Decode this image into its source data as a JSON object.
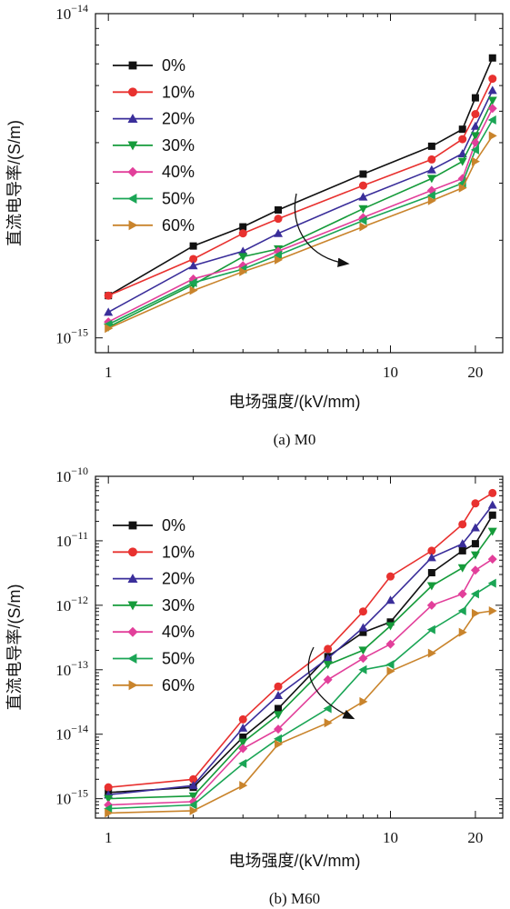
{
  "chart_data": [
    {
      "type": "line",
      "caption": "(a) M0",
      "xlabel": "电场强度/(kV/mm)",
      "ylabel": "直流电导率/(S/m)",
      "xscale": "log",
      "yscale": "log",
      "xlim": [
        0.9,
        25
      ],
      "ylim": [
        9e-16,
        1e-14
      ],
      "xticks": [
        {
          "value": 1,
          "label": "1"
        },
        {
          "value": 10,
          "label": "10"
        },
        {
          "value": 20,
          "label": "20"
        }
      ],
      "yticks": [
        {
          "value": 1e-15,
          "base": "10",
          "exp": "−15"
        },
        {
          "value": 1e-14,
          "base": "10",
          "exp": "−14"
        }
      ],
      "legend_position": "top-left",
      "x": [
        1,
        2,
        3,
        4,
        8,
        14,
        18,
        20,
        23
      ],
      "series": [
        {
          "name": "0%",
          "color": "#111111",
          "marker": "square",
          "values": [
            1.35e-15,
            1.92e-15,
            2.2e-15,
            2.48e-15,
            3.2e-15,
            3.9e-15,
            4.4e-15,
            5.5e-15,
            7.3e-15
          ]
        },
        {
          "name": "10%",
          "color": "#e8312f",
          "marker": "circle",
          "values": [
            1.35e-15,
            1.75e-15,
            2.1e-15,
            2.33e-15,
            2.95e-15,
            3.55e-15,
            4.1e-15,
            4.9e-15,
            6.3e-15
          ]
        },
        {
          "name": "20%",
          "color": "#3a2e9a",
          "marker": "triangle-up",
          "values": [
            1.2e-15,
            1.67e-15,
            1.85e-15,
            2.1e-15,
            2.72e-15,
            3.3e-15,
            3.7e-15,
            4.5e-15,
            5.8e-15
          ]
        },
        {
          "name": "30%",
          "color": "#159b3a",
          "marker": "triangle-down",
          "values": [
            1.08e-15,
            1.46e-15,
            1.78e-15,
            1.88e-15,
            2.5e-15,
            3.1e-15,
            3.5e-15,
            4.2e-15,
            5.4e-15
          ]
        },
        {
          "name": "40%",
          "color": "#e23f9a",
          "marker": "diamond",
          "values": [
            1.12e-15,
            1.52e-15,
            1.67e-15,
            1.85e-15,
            2.35e-15,
            2.85e-15,
            3.1e-15,
            4e-15,
            5.1e-15
          ]
        },
        {
          "name": "50%",
          "color": "#1aa555",
          "marker": "triangle-left",
          "values": [
            1.1e-15,
            1.48e-15,
            1.63e-15,
            1.8e-15,
            2.3e-15,
            2.75e-15,
            3e-15,
            3.8e-15,
            4.7e-15
          ]
        },
        {
          "name": "60%",
          "color": "#c9842c",
          "marker": "triangle-right",
          "values": [
            1.07e-15,
            1.4e-15,
            1.6e-15,
            1.74e-15,
            2.2e-15,
            2.65e-15,
            2.9e-15,
            3.5e-15,
            4.2e-15
          ]
        }
      ]
    },
    {
      "type": "line",
      "caption": "(b) M60",
      "xlabel": "电场强度/(kV/mm)",
      "ylabel": "直流电导率/(S/m)",
      "xscale": "log",
      "yscale": "log",
      "xlim": [
        0.9,
        25
      ],
      "ylim": [
        5e-16,
        1e-10
      ],
      "xticks": [
        {
          "value": 1,
          "label": "1"
        },
        {
          "value": 10,
          "label": "10"
        },
        {
          "value": 20,
          "label": "20"
        }
      ],
      "yticks": [
        {
          "value": 1e-15,
          "base": "10",
          "exp": "−15"
        },
        {
          "value": 1e-14,
          "base": "10",
          "exp": "−14"
        },
        {
          "value": 1e-13,
          "base": "10",
          "exp": "−13"
        },
        {
          "value": 1e-12,
          "base": "10",
          "exp": "−12"
        },
        {
          "value": 1e-11,
          "base": "10",
          "exp": "−11"
        },
        {
          "value": 1e-10,
          "base": "10",
          "exp": "−10"
        }
      ],
      "legend_position": "top-left",
      "x": [
        1,
        2,
        3,
        4,
        6,
        8,
        10,
        14,
        18,
        20,
        23
      ],
      "series": [
        {
          "name": "0%",
          "color": "#111111",
          "marker": "square",
          "values": [
            1.25e-15,
            1.5e-15,
            9e-15,
            2.5e-14,
            1.6e-13,
            3.8e-13,
            5.5e-13,
            3.2e-12,
            7e-12,
            9e-12,
            2.5e-11
          ]
        },
        {
          "name": "10%",
          "color": "#e8312f",
          "marker": "circle",
          "values": [
            1.5e-15,
            2e-15,
            1.7e-14,
            5.5e-14,
            2.1e-13,
            8e-13,
            2.8e-12,
            7e-12,
            1.8e-11,
            3.8e-11,
            5.5e-11
          ]
        },
        {
          "name": "20%",
          "color": "#3a2e9a",
          "marker": "triangle-up",
          "values": [
            1.15e-15,
            1.6e-15,
            1.25e-14,
            4e-14,
            1.5e-13,
            4.5e-13,
            1.2e-12,
            5.5e-12,
            9e-12,
            1.6e-11,
            3.6e-11
          ]
        },
        {
          "name": "30%",
          "color": "#159b3a",
          "marker": "triangle-down",
          "values": [
            1e-15,
            1.1e-15,
            7.5e-15,
            2e-14,
            1.2e-13,
            2e-13,
            4.8e-13,
            2e-12,
            3.8e-12,
            6e-12,
            1.4e-11
          ]
        },
        {
          "name": "40%",
          "color": "#e23f9a",
          "marker": "diamond",
          "values": [
            8e-16,
            9e-16,
            6e-15,
            1.2e-14,
            7e-14,
            1.5e-13,
            2.5e-13,
            1e-12,
            1.5e-12,
            3.5e-12,
            5.2e-12
          ]
        },
        {
          "name": "50%",
          "color": "#1aa555",
          "marker": "triangle-left",
          "values": [
            7e-16,
            8e-16,
            3.5e-15,
            8.5e-15,
            2.5e-14,
            1e-13,
            1.2e-13,
            4.2e-13,
            8.2e-13,
            1.5e-12,
            2.2e-12
          ]
        },
        {
          "name": "60%",
          "color": "#c9842c",
          "marker": "triangle-right",
          "values": [
            6e-16,
            6.5e-16,
            1.6e-15,
            7e-15,
            1.5e-14,
            3.2e-14,
            9.5e-14,
            1.8e-13,
            3.8e-13,
            7.5e-13,
            8.2e-13
          ]
        }
      ]
    }
  ]
}
